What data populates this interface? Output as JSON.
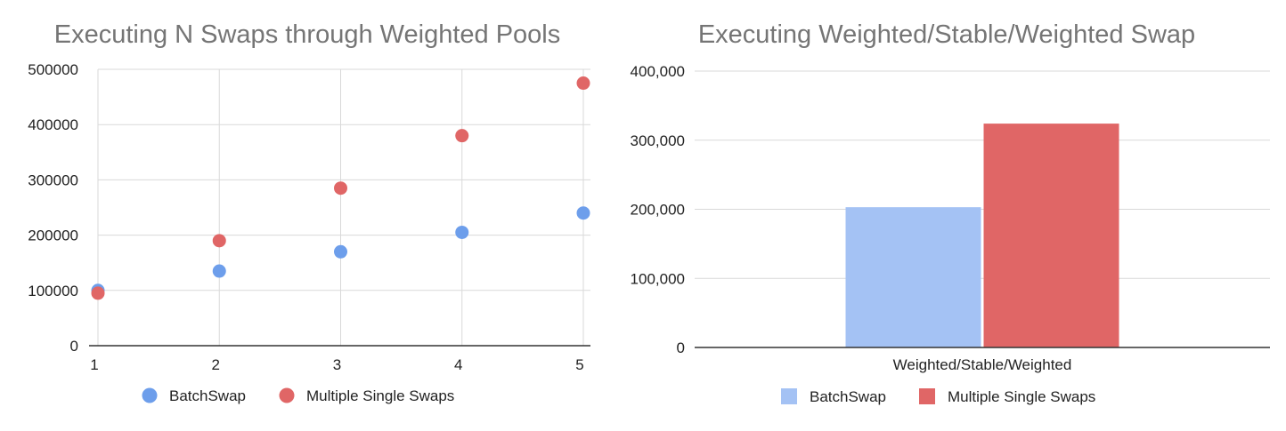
{
  "chart_data": [
    {
      "type": "scatter",
      "title": "Executing N Swaps through Weighted Pools",
      "xlabel": "",
      "ylabel": "",
      "x": [
        1,
        2,
        3,
        4,
        5
      ],
      "xlim": [
        1,
        5
      ],
      "ylim": [
        0,
        500000
      ],
      "yticks": [
        "0",
        "100000",
        "200000",
        "300000",
        "400000",
        "500000"
      ],
      "xticks": [
        "1",
        "2",
        "3",
        "4",
        "5"
      ],
      "grid": true,
      "legend_position": "bottom",
      "series": [
        {
          "name": "BatchSwap",
          "color": "#6d9eeb",
          "values": [
            100000,
            135000,
            170000,
            205000,
            240000
          ]
        },
        {
          "name": "Multiple Single Swaps",
          "color": "#e06666",
          "values": [
            95000,
            190000,
            285000,
            380000,
            475000
          ]
        }
      ]
    },
    {
      "type": "bar",
      "title": "Executing Weighted/Stable/Weighted Swap",
      "xlabel": "",
      "ylabel": "",
      "categories": [
        "Weighted/Stable/Weighted"
      ],
      "ylim": [
        0,
        400000
      ],
      "yticks": [
        "0",
        "100,000",
        "200,000",
        "300,000",
        "400,000"
      ],
      "grid": true,
      "legend_position": "bottom",
      "series": [
        {
          "name": "BatchSwap",
          "color": "#a4c2f4",
          "values": [
            203000
          ]
        },
        {
          "name": "Multiple Single Swaps",
          "color": "#e06666",
          "values": [
            324000
          ]
        }
      ]
    }
  ]
}
